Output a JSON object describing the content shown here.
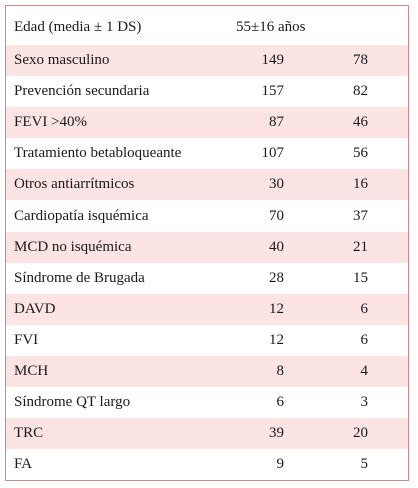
{
  "table": {
    "header": {
      "label": "Edad (media ± 1 DS)",
      "value": "55±16 años"
    },
    "rows": [
      [
        "Sexo masculino",
        149,
        78
      ],
      [
        "Prevención secundaria",
        157,
        82
      ],
      [
        "FEVI >40%",
        87,
        46
      ],
      [
        "Tratamiento betabloqueante",
        107,
        56
      ],
      [
        "Otros antiarrítmicos",
        30,
        16
      ],
      [
        "Cardiopatía isquémica",
        70,
        37
      ],
      [
        "MCD no isquémica",
        40,
        21
      ],
      [
        "Síndrome de Brugada",
        28,
        15
      ],
      [
        "DAVD",
        12,
        6
      ],
      [
        "FVI",
        12,
        6
      ],
      [
        "MCH",
        8,
        4
      ],
      [
        "Síndrome QT largo",
        6,
        3
      ],
      [
        "TRC",
        39,
        20
      ],
      [
        "FA",
        9,
        5
      ]
    ]
  }
}
